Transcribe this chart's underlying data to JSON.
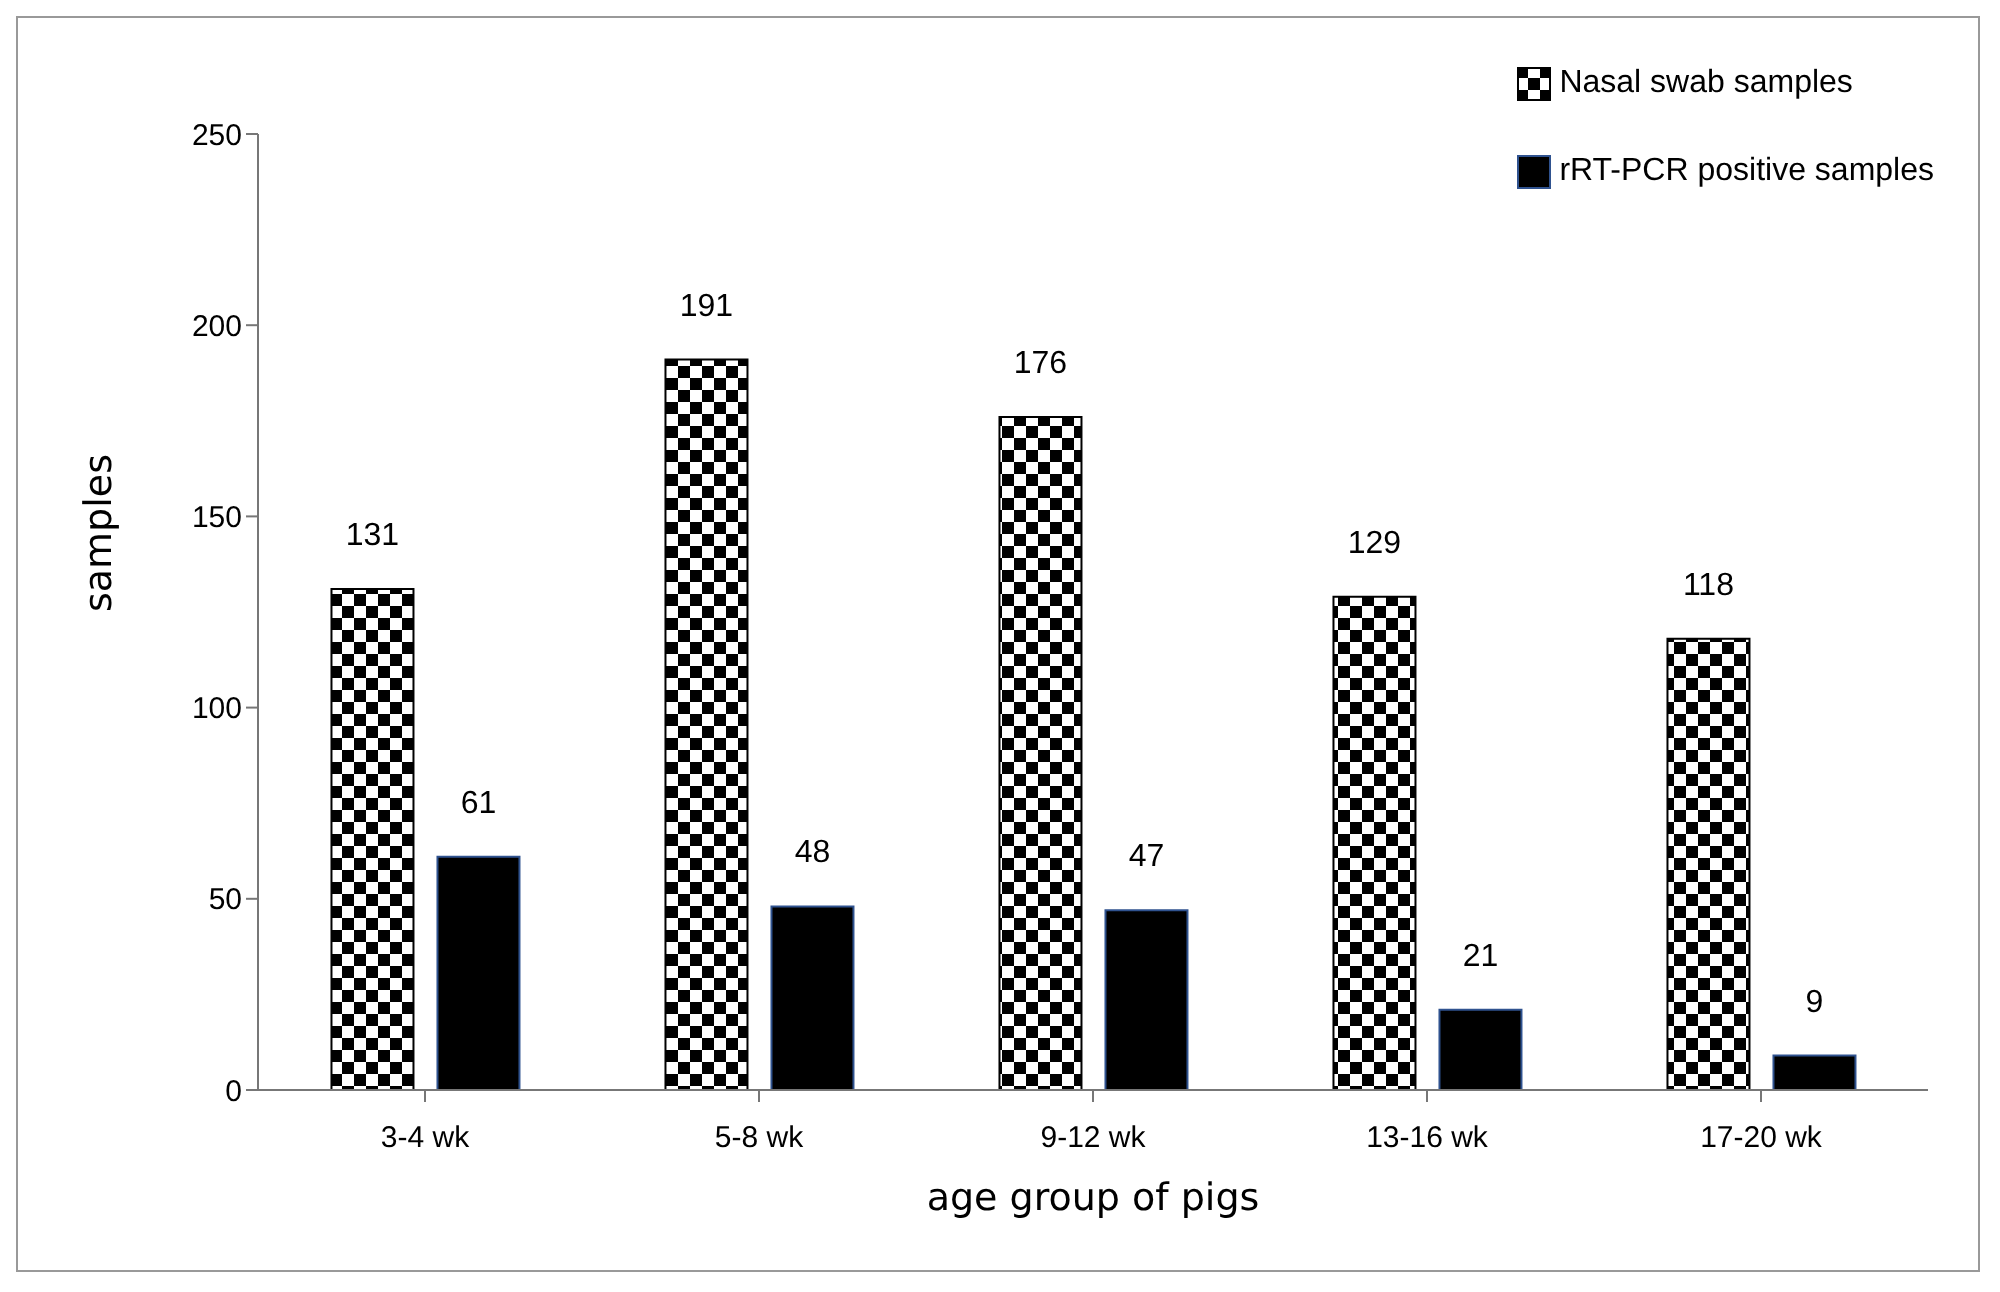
{
  "chart_data": {
    "type": "bar",
    "xlabel": "age group of pigs",
    "ylabel": "samples",
    "categories": [
      "3-4 wk",
      "5-8 wk",
      "9-12 wk",
      "13-16 wk",
      "17-20 wk"
    ],
    "series": [
      {
        "name": "Nasal swab samples",
        "color": "#000000",
        "values": [
          131,
          191,
          176,
          129,
          118
        ]
      },
      {
        "name": "rRT-PCR positive samples",
        "color": "#000000",
        "values": [
          61,
          48,
          47,
          21,
          9
        ]
      }
    ],
    "ylim": [
      0,
      250
    ],
    "yticks": [
      0,
      50,
      100,
      150,
      200,
      250
    ],
    "grid": false,
    "legend": "top right",
    "data_labels": true
  }
}
